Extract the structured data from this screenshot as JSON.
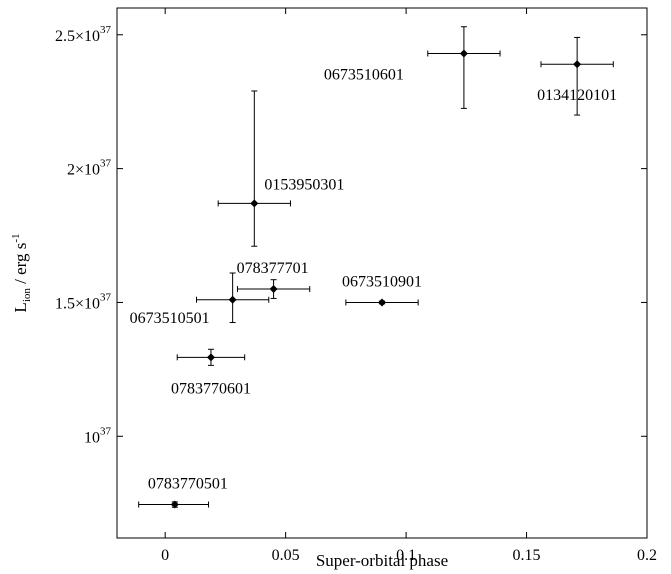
{
  "chart_data": {
    "type": "scatter",
    "title": "",
    "xlabel": "Super-orbital phase",
    "ylabel": {
      "base": "L",
      "sub": "ion",
      "rest": " / erg s",
      "sup": "-1"
    },
    "xlim": [
      -0.02,
      0.2
    ],
    "ylim": [
      6.2e+36,
      2.6e+37
    ],
    "grid": false,
    "x_ticks": [
      {
        "value": 0,
        "label": "0"
      },
      {
        "value": 0.05,
        "label": "0.05"
      },
      {
        "value": 0.1,
        "label": "0.1"
      },
      {
        "value": 0.15,
        "label": "0.15"
      },
      {
        "value": 0.2,
        "label": "0.2"
      }
    ],
    "y_ticks": [
      {
        "value": 1e+37,
        "mant": "",
        "exp": "37",
        "base": "10"
      },
      {
        "value": 1.5e+37,
        "mant": "1.5×",
        "exp": "37",
        "base": "10"
      },
      {
        "value": 2e+37,
        "mant": "2×",
        "exp": "37",
        "base": "10"
      },
      {
        "value": 2.5e+37,
        "mant": "2.5×",
        "exp": "37",
        "base": "10"
      }
    ],
    "points": [
      {
        "label": "0783770501",
        "x": 0.004,
        "xerr": [
          0.015,
          0.014
        ],
        "y": 7.45e+36,
        "yerr": [
          1e+35,
          1e+35
        ],
        "label_pos": "above"
      },
      {
        "label": "0783770601",
        "x": 0.019,
        "xerr": [
          0.014,
          0.014
        ],
        "y": 1.295e+37,
        "yerr": [
          3e+35,
          3e+35
        ],
        "label_pos": "below"
      },
      {
        "label": "0673510501",
        "x": 0.028,
        "xerr": [
          0.015,
          0.015
        ],
        "y": 1.51e+37,
        "yerr": [
          8.5e+35,
          1e+36
        ],
        "label_pos": "below-left"
      },
      {
        "label": "078377701",
        "x": 0.045,
        "xerr": [
          0.015,
          0.015
        ],
        "y": 1.55e+37,
        "yerr": [
          3.5e+35,
          3.5e+35
        ],
        "label_pos": "above"
      },
      {
        "label": "0153950301",
        "x": 0.037,
        "xerr": [
          0.015,
          0.015
        ],
        "y": 1.87e+37,
        "yerr": [
          1.6e+36,
          4.2e+36
        ],
        "label_pos": "right"
      },
      {
        "label": "0673510901",
        "x": 0.09,
        "xerr": [
          0.015,
          0.015
        ],
        "y": 1.5e+37,
        "yerr": [
          5e+34,
          5e+34
        ],
        "label_pos": "above"
      },
      {
        "label": "0673510601",
        "x": 0.124,
        "xerr": [
          0.015,
          0.015
        ],
        "y": 2.43e+37,
        "yerr": [
          2.05e+36,
          1e+36
        ],
        "label_pos": "left"
      },
      {
        "label": "0134120101",
        "x": 0.171,
        "xerr": [
          0.015,
          0.015
        ],
        "y": 2.39e+37,
        "yerr": [
          1.9e+36,
          1e+36
        ],
        "label_pos": "below"
      }
    ]
  }
}
